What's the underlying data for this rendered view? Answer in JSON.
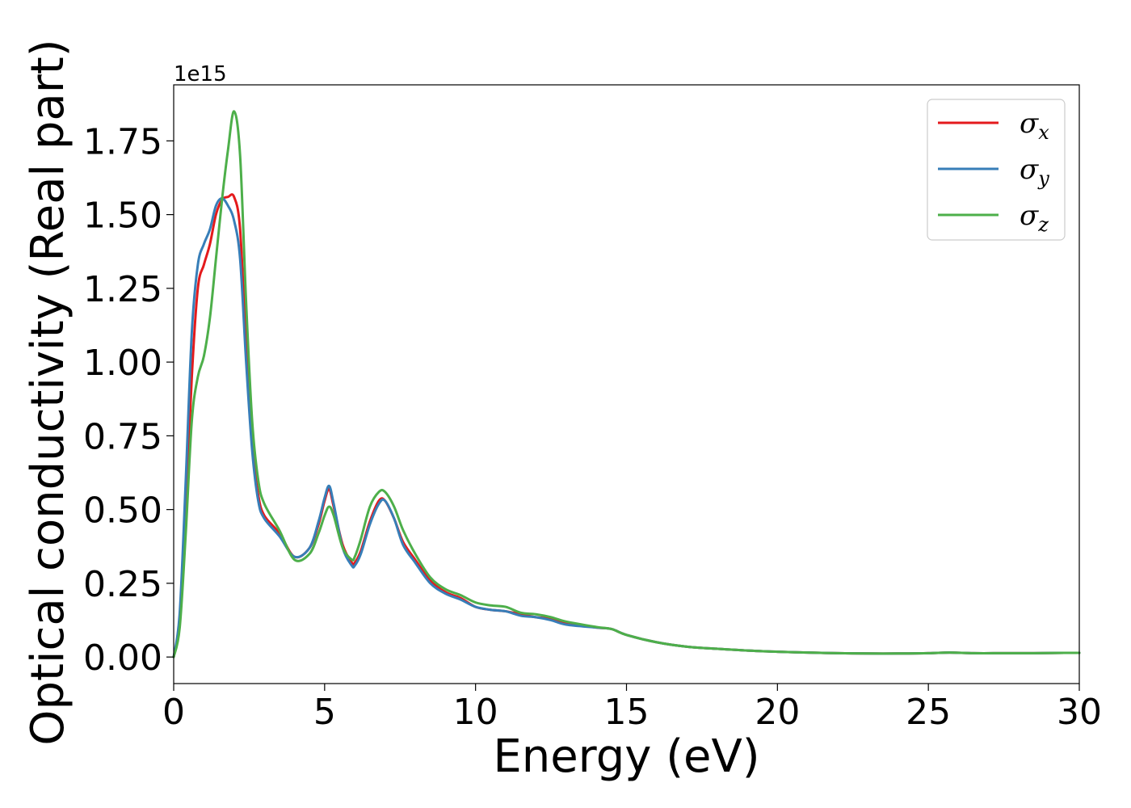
{
  "chart_data": {
    "type": "line",
    "xlabel": "Energy (eV)",
    "ylabel": "Optical conductivity (Real part)",
    "y_offset_label": "1e15",
    "xlim": [
      0,
      30
    ],
    "ylim": [
      -0.09,
      1.94
    ],
    "y_scale_factor": 1000000000000000.0,
    "x_ticks": [
      0,
      5,
      10,
      15,
      20,
      25,
      30
    ],
    "x_tick_labels": [
      "0",
      "5",
      "10",
      "15",
      "20",
      "25",
      "30"
    ],
    "y_ticks": [
      0.0,
      0.25,
      0.5,
      0.75,
      1.0,
      1.25,
      1.5,
      1.75
    ],
    "y_tick_labels": [
      "0.00",
      "0.25",
      "0.50",
      "0.75",
      "1.00",
      "1.25",
      "1.50",
      "1.75"
    ],
    "grid": false,
    "legend_position": "top-right",
    "series": [
      {
        "name": "σx",
        "legend_symbol": "σ",
        "legend_subscript": "x",
        "color": "#e41a1c",
        "x": [
          0,
          0.2,
          0.4,
          0.6,
          0.8,
          1.0,
          1.2,
          1.4,
          1.6,
          1.8,
          2.0,
          2.2,
          2.4,
          2.6,
          2.8,
          3.0,
          3.5,
          4.0,
          4.5,
          4.8,
          5.0,
          5.15,
          5.3,
          5.6,
          5.9,
          6.0,
          6.2,
          6.5,
          6.8,
          7.0,
          7.3,
          7.6,
          8.0,
          8.5,
          9.0,
          9.5,
          10.0,
          10.5,
          11.0,
          11.5,
          12.0,
          12.5,
          13.0,
          14.0,
          14.5,
          15.0,
          16.0,
          17.0,
          18.0,
          19.0,
          20.0,
          21.0,
          22.0,
          23.0,
          24.0,
          25.0,
          25.7,
          26.5,
          27.5,
          28.5,
          29.5,
          30.0
        ],
        "y": [
          0.0,
          0.12,
          0.5,
          0.95,
          1.25,
          1.33,
          1.4,
          1.5,
          1.55,
          1.56,
          1.56,
          1.45,
          1.05,
          0.72,
          0.55,
          0.48,
          0.42,
          0.34,
          0.37,
          0.45,
          0.53,
          0.57,
          0.51,
          0.38,
          0.32,
          0.32,
          0.36,
          0.46,
          0.53,
          0.53,
          0.47,
          0.39,
          0.33,
          0.26,
          0.22,
          0.2,
          0.17,
          0.16,
          0.155,
          0.145,
          0.135,
          0.13,
          0.115,
          0.1,
          0.095,
          0.075,
          0.05,
          0.035,
          0.028,
          0.022,
          0.018,
          0.015,
          0.013,
          0.012,
          0.012,
          0.013,
          0.015,
          0.013,
          0.013,
          0.013,
          0.014,
          0.014
        ]
      },
      {
        "name": "σy",
        "legend_symbol": "σ",
        "legend_subscript": "y",
        "color": "#377eb8",
        "x": [
          0,
          0.2,
          0.4,
          0.6,
          0.8,
          1.0,
          1.2,
          1.4,
          1.6,
          1.8,
          2.0,
          2.2,
          2.4,
          2.6,
          2.8,
          3.0,
          3.5,
          4.0,
          4.5,
          4.8,
          5.0,
          5.15,
          5.3,
          5.6,
          5.9,
          6.0,
          6.2,
          6.5,
          6.8,
          7.0,
          7.3,
          7.6,
          8.0,
          8.5,
          9.0,
          9.5,
          10.0,
          10.5,
          11.0,
          11.5,
          12.0,
          12.5,
          13.0,
          14.0,
          14.5,
          15.0,
          16.0,
          17.0,
          18.0,
          19.0,
          20.0,
          21.0,
          22.0,
          23.0,
          24.0,
          25.0,
          25.7,
          26.5,
          27.5,
          28.5,
          29.5,
          30.0
        ],
        "y": [
          0.0,
          0.15,
          0.6,
          1.1,
          1.33,
          1.4,
          1.45,
          1.53,
          1.555,
          1.53,
          1.48,
          1.35,
          1.0,
          0.7,
          0.53,
          0.47,
          0.41,
          0.34,
          0.37,
          0.46,
          0.54,
          0.58,
          0.52,
          0.37,
          0.31,
          0.31,
          0.35,
          0.45,
          0.52,
          0.53,
          0.47,
          0.38,
          0.32,
          0.25,
          0.215,
          0.195,
          0.17,
          0.16,
          0.155,
          0.14,
          0.135,
          0.125,
          0.11,
          0.1,
          0.095,
          0.075,
          0.05,
          0.035,
          0.028,
          0.022,
          0.018,
          0.015,
          0.013,
          0.012,
          0.012,
          0.013,
          0.015,
          0.013,
          0.013,
          0.013,
          0.014,
          0.014
        ]
      },
      {
        "name": "σz",
        "legend_symbol": "σ",
        "legend_subscript": "z",
        "color": "#4daf4a",
        "x": [
          0,
          0.2,
          0.4,
          0.6,
          0.8,
          1.0,
          1.2,
          1.4,
          1.6,
          1.8,
          2.0,
          2.2,
          2.4,
          2.6,
          2.8,
          3.0,
          3.5,
          4.0,
          4.5,
          4.8,
          5.0,
          5.15,
          5.3,
          5.6,
          5.9,
          6.0,
          6.2,
          6.5,
          6.8,
          7.0,
          7.3,
          7.6,
          8.0,
          8.5,
          9.0,
          9.5,
          10.0,
          10.5,
          11.0,
          11.5,
          12.0,
          12.5,
          13.0,
          14.0,
          14.5,
          15.0,
          16.0,
          17.0,
          18.0,
          19.0,
          20.0,
          21.0,
          22.0,
          23.0,
          24.0,
          25.0,
          25.7,
          26.5,
          27.5,
          28.5,
          29.5,
          30.0
        ],
        "y": [
          0.0,
          0.1,
          0.42,
          0.8,
          0.95,
          1.02,
          1.15,
          1.35,
          1.55,
          1.72,
          1.85,
          1.7,
          1.2,
          0.8,
          0.6,
          0.52,
          0.43,
          0.33,
          0.35,
          0.42,
          0.48,
          0.51,
          0.48,
          0.37,
          0.33,
          0.34,
          0.4,
          0.51,
          0.56,
          0.56,
          0.51,
          0.43,
          0.35,
          0.27,
          0.23,
          0.21,
          0.185,
          0.175,
          0.17,
          0.15,
          0.145,
          0.135,
          0.12,
          0.102,
          0.095,
          0.075,
          0.05,
          0.035,
          0.028,
          0.022,
          0.018,
          0.015,
          0.013,
          0.012,
          0.012,
          0.013,
          0.015,
          0.013,
          0.013,
          0.013,
          0.014,
          0.014
        ]
      }
    ]
  }
}
